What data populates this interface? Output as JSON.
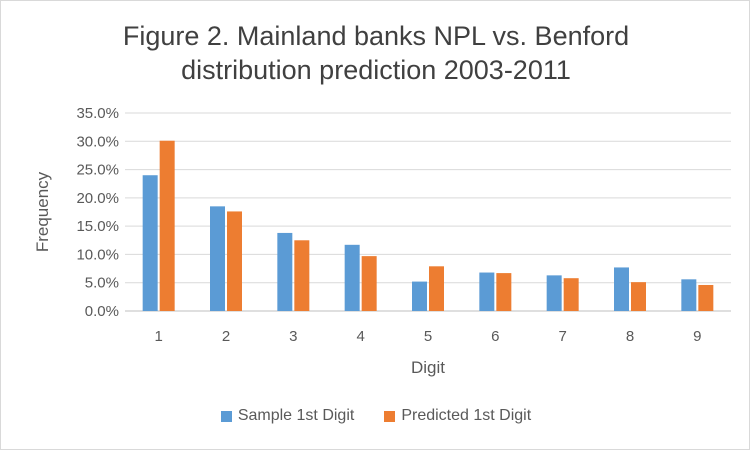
{
  "chart_data": {
    "type": "bar",
    "title_lines": [
      "Figure 2. Mainland banks NPL vs. Benford",
      "distribution prediction 2003-2011"
    ],
    "xlabel": "Digit",
    "ylabel": "Frequency",
    "categories": [
      "1",
      "2",
      "3",
      "4",
      "5",
      "6",
      "7",
      "8",
      "9"
    ],
    "ylim": [
      0,
      0.35
    ],
    "yticks": [
      "0.0%",
      "5.0%",
      "10.0%",
      "15.0%",
      "20.0%",
      "25.0%",
      "30.0%",
      "35.0%"
    ],
    "grid": true,
    "legend_position": "bottom",
    "series": [
      {
        "name": "Sample 1st Digit",
        "color": "#5b9bd5",
        "values": [
          0.24,
          0.185,
          0.138,
          0.117,
          0.052,
          0.068,
          0.063,
          0.077,
          0.056
        ]
      },
      {
        "name": "Predicted 1st Digit",
        "color": "#ed7d31",
        "values": [
          0.301,
          0.176,
          0.125,
          0.097,
          0.079,
          0.067,
          0.058,
          0.051,
          0.046
        ]
      }
    ]
  }
}
